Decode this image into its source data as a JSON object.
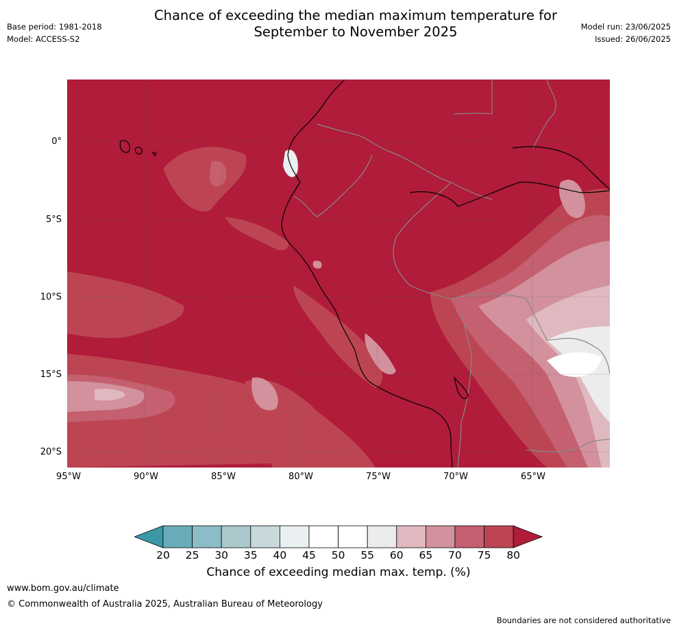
{
  "header": {
    "title_line1": "Chance of exceeding the median maximum temperature for",
    "title_line2": "September to November 2025",
    "base_period": "Base period: 1981-2018",
    "model": "Model: ACCESS-S2",
    "model_run": "Model run: 23/06/2025",
    "issued": "Issued: 26/06/2025"
  },
  "map": {
    "lat_labels": [
      "0°",
      "5°S",
      "10°S",
      "15°S",
      "20°S"
    ],
    "lon_labels": [
      "95°W",
      "90°W",
      "85°W",
      "80°W",
      "75°W",
      "70°W",
      "65°W"
    ],
    "base_color": "#b01c39"
  },
  "colorbar": {
    "ticks": [
      "20",
      "25",
      "30",
      "35",
      "40",
      "45",
      "50",
      "55",
      "60",
      "65",
      "70",
      "75",
      "80"
    ],
    "colors": [
      "#3c98a6",
      "#6aadba",
      "#8cbcc6",
      "#abc9cd",
      "#c9d8db",
      "#eaeff1",
      "#ffffff",
      "#ffffff",
      "#ececec",
      "#e0b9c0",
      "#d2919c",
      "#c4606f",
      "#bd4553",
      "#b01c39"
    ],
    "label": "Chance of exceeding median max. temp. (%)"
  },
  "footer": {
    "url": "www.bom.gov.au/climate",
    "copyright": "© Commonwealth of Australia 2025, Australian Bureau of Meteorology",
    "note": "Boundaries are not considered authoritative"
  }
}
